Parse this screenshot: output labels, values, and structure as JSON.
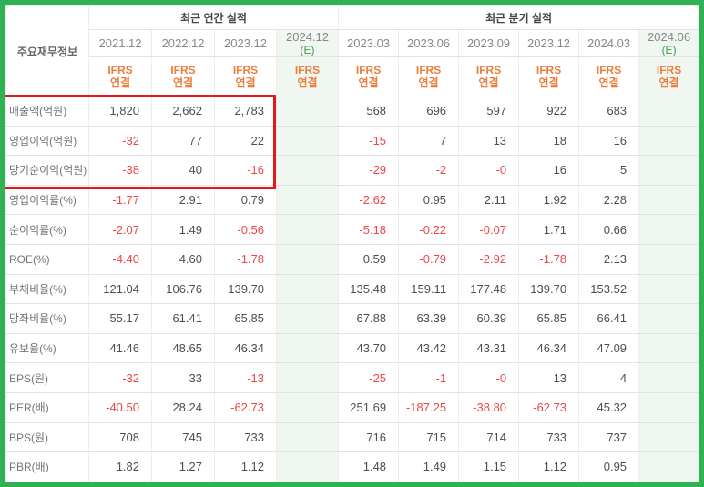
{
  "header": {
    "corner": "주요재무정보",
    "annual_group": "최근 연간 실적",
    "quarterly_group": "최근 분기 실적",
    "standard_line1": "IFRS",
    "standard_line2": "연결",
    "columns": [
      {
        "period": "2021.12",
        "suffix": "",
        "estimate": false
      },
      {
        "period": "2022.12",
        "suffix": "",
        "estimate": false
      },
      {
        "period": "2023.12",
        "suffix": "",
        "estimate": false
      },
      {
        "period": "2024.12",
        "suffix": "(E)",
        "estimate": true
      },
      {
        "period": "2023.03",
        "suffix": "",
        "estimate": false
      },
      {
        "period": "2023.06",
        "suffix": "",
        "estimate": false
      },
      {
        "period": "2023.09",
        "suffix": "",
        "estimate": false
      },
      {
        "period": "2023.12",
        "suffix": "",
        "estimate": false
      },
      {
        "period": "2024.03",
        "suffix": "",
        "estimate": false
      },
      {
        "period": "2024.06",
        "suffix": "(E)",
        "estimate": true
      }
    ]
  },
  "rows": [
    {
      "label": "매출액(억원)",
      "values": [
        "1,820",
        "2,662",
        "2,783",
        "",
        "568",
        "696",
        "597",
        "922",
        "683",
        ""
      ]
    },
    {
      "label": "영업이익(억원)",
      "values": [
        "-32",
        "77",
        "22",
        "",
        "-15",
        "7",
        "13",
        "18",
        "16",
        ""
      ]
    },
    {
      "label": "당기순이익(억원)",
      "values": [
        "-38",
        "40",
        "-16",
        "",
        "-29",
        "-2",
        "-0",
        "16",
        "5",
        ""
      ]
    },
    {
      "label": "영업이익률(%)",
      "values": [
        "-1.77",
        "2.91",
        "0.79",
        "",
        "-2.62",
        "0.95",
        "2.11",
        "1.92",
        "2.28",
        ""
      ]
    },
    {
      "label": "순이익률(%)",
      "values": [
        "-2.07",
        "1.49",
        "-0.56",
        "",
        "-5.18",
        "-0.22",
        "-0.07",
        "1.71",
        "0.66",
        ""
      ]
    },
    {
      "label": "ROE(%)",
      "values": [
        "-4.40",
        "4.60",
        "-1.78",
        "",
        "0.59",
        "-0.79",
        "-2.92",
        "-1.78",
        "2.13",
        ""
      ]
    },
    {
      "label": "부채비율(%)",
      "values": [
        "121.04",
        "106.76",
        "139.70",
        "",
        "135.48",
        "159.11",
        "177.48",
        "139.70",
        "153.52",
        ""
      ]
    },
    {
      "label": "당좌비율(%)",
      "values": [
        "55.17",
        "61.41",
        "65.85",
        "",
        "67.88",
        "63.39",
        "60.39",
        "65.85",
        "66.41",
        ""
      ]
    },
    {
      "label": "유보율(%)",
      "values": [
        "41.46",
        "48.65",
        "46.34",
        "",
        "43.70",
        "43.42",
        "43.31",
        "46.34",
        "47.09",
        ""
      ]
    },
    {
      "label": "EPS(원)",
      "values": [
        "-32",
        "33",
        "-13",
        "",
        "-25",
        "-1",
        "-0",
        "13",
        "4",
        ""
      ]
    },
    {
      "label": "PER(배)",
      "values": [
        "-40.50",
        "28.24",
        "-62.73",
        "",
        "251.69",
        "-187.25",
        "-38.80",
        "-62.73",
        "45.32",
        ""
      ]
    },
    {
      "label": "BPS(원)",
      "values": [
        "708",
        "745",
        "733",
        "",
        "716",
        "715",
        "714",
        "733",
        "737",
        ""
      ]
    },
    {
      "label": "PBR(배)",
      "values": [
        "1.82",
        "1.27",
        "1.12",
        "",
        "1.48",
        "1.49",
        "1.15",
        "1.12",
        "0.95",
        ""
      ]
    }
  ],
  "colors": {
    "frame_green": "#30b254",
    "est_bg": "#f0f6f0",
    "est_green": "#3d9f4d",
    "ifrs_orange": "#ee7d3c",
    "date_gray": "#888888",
    "label_gray": "#757575",
    "value_gray": "#4e4e4e",
    "neg_red": "#f04545",
    "highlight_red": "#e51717",
    "grid_light": "#ededed",
    "grid_dark": "#e3e3e3",
    "grid_header": "#dcdcdc"
  }
}
